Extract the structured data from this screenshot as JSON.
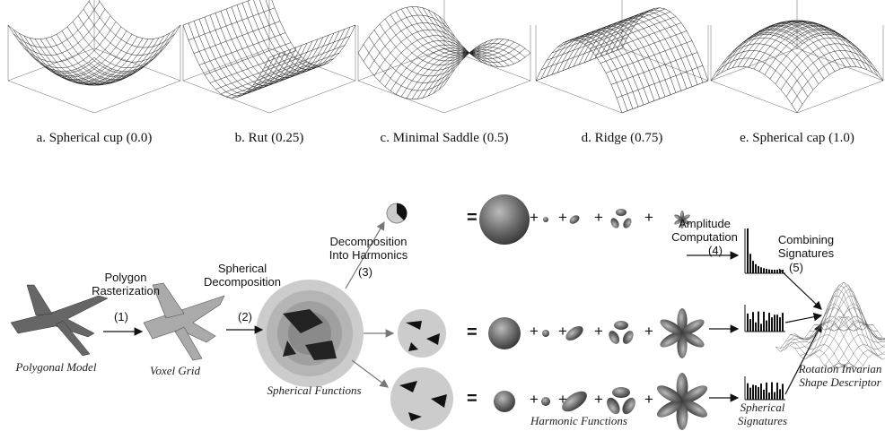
{
  "panels": [
    {
      "caption": "a. Spherical cup (0.0)"
    },
    {
      "caption": "b. Rut (0.25)"
    },
    {
      "caption": "c. Minimal Saddle (0.5)"
    },
    {
      "caption": "d. Ridge (0.75)"
    },
    {
      "caption": "e. Spherical cap (1.0)"
    }
  ],
  "pipeline": {
    "steps": [
      {
        "label": "Polygon Rasterization",
        "number": "(1)"
      },
      {
        "label": "Spherical Decomposition",
        "number": "(2)"
      },
      {
        "label": "Decomposition Into Harmonics",
        "number": "(3)"
      },
      {
        "label": "Amplitude Computation",
        "number": "(4)"
      },
      {
        "label": "Combining Signatures",
        "number": "(5)"
      }
    ],
    "captions": {
      "model": "Polygonal Model",
      "voxel": "Voxel Grid",
      "functions": "Spherical Functions",
      "harmonics": "Harmonic Functions",
      "signatures": "Spherical Signatures",
      "descriptor": "Rotation Invarian Shape Descriptor"
    },
    "operators": {
      "equals": "=",
      "plus": "+"
    }
  }
}
